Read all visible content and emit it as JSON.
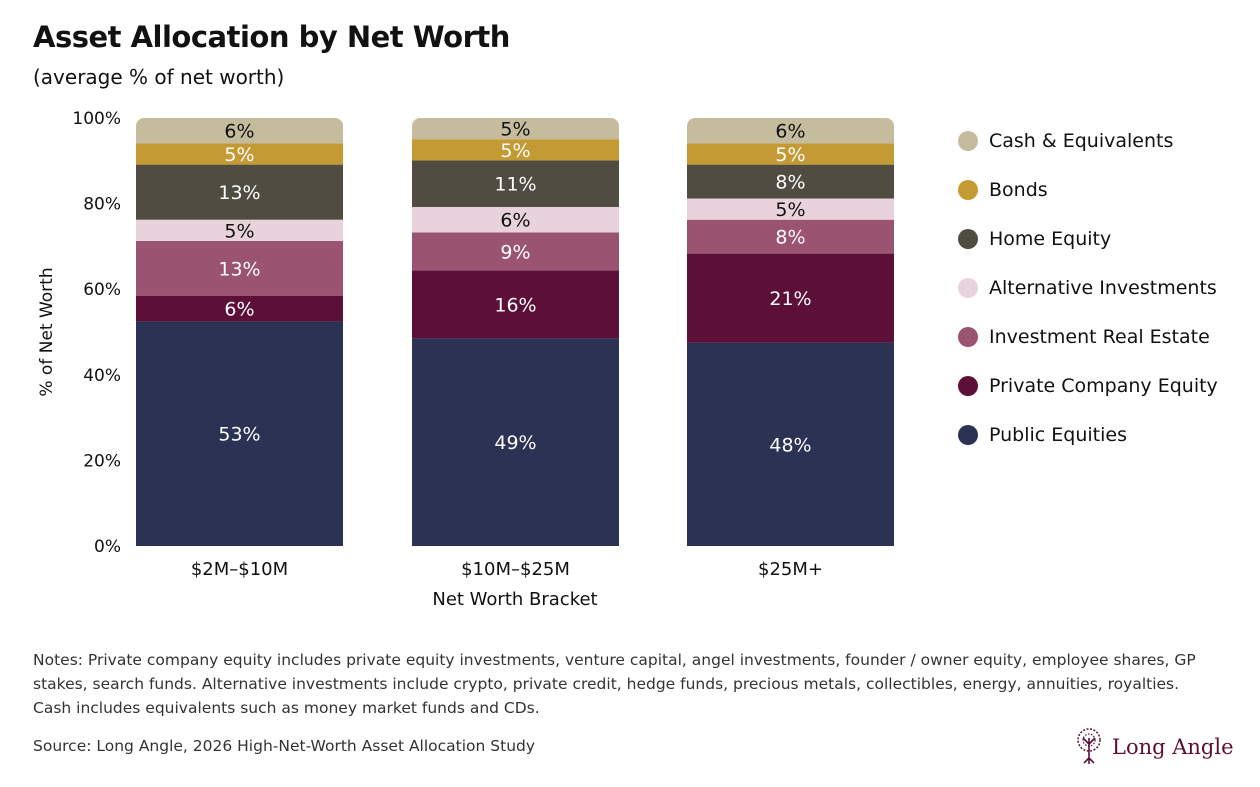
{
  "title": "Asset Allocation by Net Worth",
  "subtitle": "(average % of net worth)",
  "notes": "Notes: Private company equity includes private equity investments, venture capital, angel investments, founder / owner equity, employee shares, GP stakes, search funds. Alternative investments include crypto, private credit, hedge funds, precious metals, collectibles, energy, annuities, royalties. Cash includes equivalents such as money market funds and CDs.",
  "source": "Source: Long Angle, 2026 High-Net-Worth Asset Allocation Study",
  "logo": "Long Angle",
  "chart_data": {
    "type": "bar",
    "stacked": true,
    "xlabel": "Net Worth Bracket",
    "ylabel": "% of Net Worth",
    "ylim": [
      0,
      100
    ],
    "yticks": [
      "0%",
      "20%",
      "40%",
      "60%",
      "80%",
      "100%"
    ],
    "categories": [
      "$2M–$10M",
      "$10M–$25M",
      "$25M+"
    ],
    "legend_position": "right",
    "series": [
      {
        "name": "Public Equities",
        "color": "#2b3254",
        "label_color": "#ffffff",
        "values": [
          53,
          49,
          48
        ]
      },
      {
        "name": "Private Company Equity",
        "color": "#5c1038",
        "label_color": "#ffffff",
        "values": [
          6,
          16,
          21
        ]
      },
      {
        "name": "Investment Real Estate",
        "color": "#9b5372",
        "label_color": "#ffffff",
        "values": [
          13,
          9,
          8
        ]
      },
      {
        "name": "Alternative Investments",
        "color": "#e8d3dc",
        "label_color": "#111111",
        "values": [
          5,
          6,
          5
        ]
      },
      {
        "name": "Home Equity",
        "color": "#504c42",
        "label_color": "#ffffff",
        "values": [
          13,
          11,
          8
        ]
      },
      {
        "name": "Bonds",
        "color": "#c49a35",
        "label_color": "#ffffff",
        "values": [
          5,
          5,
          5
        ]
      },
      {
        "name": "Cash & Equivalents",
        "color": "#c5bc9d",
        "label_color": "#111111",
        "values": [
          6,
          5,
          6
        ]
      }
    ]
  }
}
